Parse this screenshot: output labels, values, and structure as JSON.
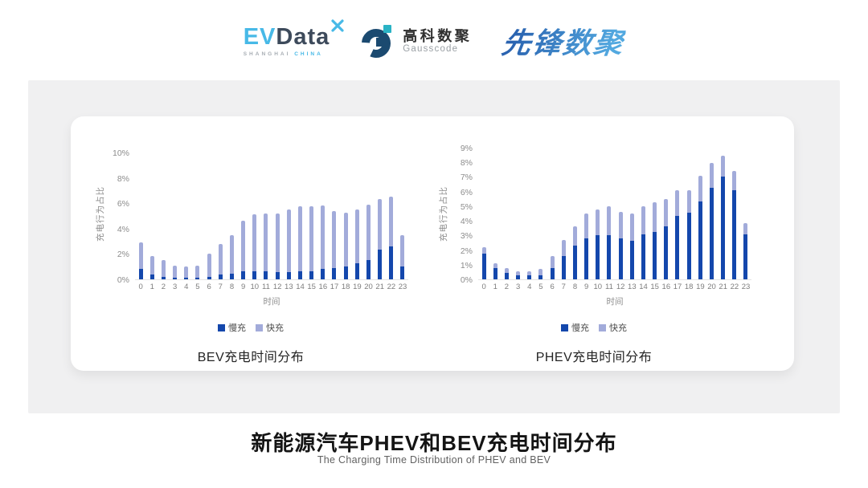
{
  "header": {
    "evdata_logo": {
      "ev": "EV",
      "data_word": "Data",
      "sub_left": "SHANGHAI",
      "sub_right": "CHINA"
    },
    "gausscode_logo": {
      "cn_name": "高科数聚",
      "en_name": "Gausscode"
    },
    "pioneer_logo": {
      "text": "先锋数聚"
    }
  },
  "footer": {
    "title": "新能源汽车PHEV和BEV充电时间分布",
    "subtitle": "The Charging Time Distribution of PHEV and BEV"
  },
  "colors": {
    "slow_charge": "#1447ac",
    "fast_charge": "#a2abda",
    "evdata_blue": "#47b9e7",
    "evdata_dark": "#3d4a5b",
    "gausscode_navy": "#1b4a70",
    "gausscode_teal": "#2ab3c5",
    "panel_bg": "#ffffff",
    "band_bg": "#f0f0f1"
  },
  "chart_data": [
    {
      "type": "bar",
      "stacked": true,
      "title": "BEV充电时间分布",
      "xlabel": "时间",
      "ylabel": "充电行为占比",
      "ylim": [
        0,
        10
      ],
      "ytick_step": 2,
      "ytick_suffix": "%",
      "grid": false,
      "legend_position": "bottom",
      "categories": [
        "0",
        "1",
        "2",
        "3",
        "4",
        "5",
        "6",
        "7",
        "8",
        "9",
        "10",
        "11",
        "12",
        "13",
        "14",
        "15",
        "16",
        "17",
        "18",
        "19",
        "20",
        "21",
        "22",
        "23"
      ],
      "series": [
        {
          "name": "慢充",
          "color": "#1447ac",
          "values": [
            0.8,
            0.35,
            0.2,
            0.15,
            0.1,
            0.1,
            0.2,
            0.35,
            0.45,
            0.65,
            0.65,
            0.65,
            0.6,
            0.6,
            0.65,
            0.65,
            0.8,
            0.9,
            1.0,
            1.25,
            1.55,
            2.35,
            2.6,
            1.0
          ]
        },
        {
          "name": "快充",
          "color": "#a2abda",
          "values": [
            2.1,
            1.5,
            1.3,
            0.95,
            0.9,
            1.0,
            1.8,
            2.45,
            3.05,
            3.95,
            4.5,
            4.55,
            4.6,
            4.9,
            5.1,
            5.1,
            5.0,
            4.5,
            4.25,
            4.25,
            4.35,
            4.0,
            3.9,
            2.5
          ]
        }
      ]
    },
    {
      "type": "bar",
      "stacked": true,
      "title": "PHEV充电时间分布",
      "xlabel": "时间",
      "ylabel": "充电行为占比",
      "ylim": [
        0,
        9
      ],
      "ytick_step": 1,
      "ytick_suffix": "%",
      "grid": false,
      "legend_position": "bottom",
      "categories": [
        "0",
        "1",
        "2",
        "3",
        "4",
        "5",
        "6",
        "7",
        "8",
        "9",
        "10",
        "11",
        "12",
        "13",
        "14",
        "15",
        "16",
        "17",
        "18",
        "19",
        "20",
        "21",
        "22",
        "23"
      ],
      "series": [
        {
          "name": "慢充",
          "color": "#1447ac",
          "values": [
            1.75,
            0.75,
            0.45,
            0.25,
            0.25,
            0.3,
            0.75,
            1.6,
            2.3,
            2.8,
            3.0,
            3.0,
            2.8,
            2.65,
            3.1,
            3.25,
            3.6,
            4.35,
            4.55,
            5.35,
            6.25,
            7.0,
            6.1,
            3.05
          ]
        },
        {
          "name": "快充",
          "color": "#a2abda",
          "values": [
            0.45,
            0.35,
            0.3,
            0.3,
            0.3,
            0.4,
            0.85,
            1.1,
            1.35,
            1.7,
            1.8,
            2.0,
            1.8,
            1.85,
            1.9,
            2.0,
            1.9,
            1.75,
            1.55,
            1.75,
            1.7,
            1.45,
            1.3,
            0.8
          ]
        }
      ]
    }
  ]
}
